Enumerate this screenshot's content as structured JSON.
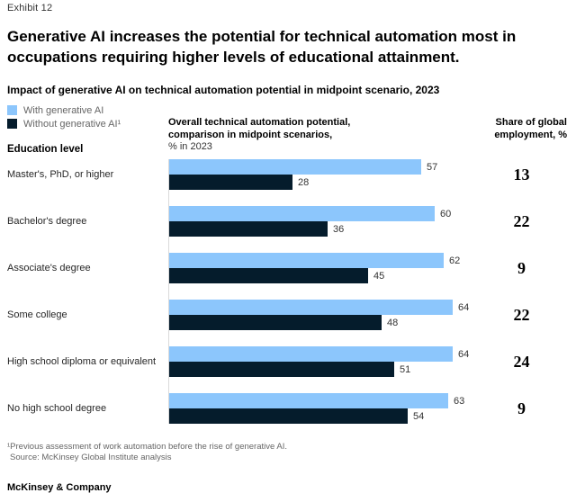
{
  "exhibit_label": "Exhibit 12",
  "title": "Generative AI increases the potential for technical automation most in occupations requiring higher levels of educational attainment.",
  "subtitle": "Impact of generative AI on technical automation potential in midpoint scenario, 2023",
  "legend": [
    {
      "label": "With generative AI",
      "color": "#8CC6FC"
    },
    {
      "label": "Without generative AI¹",
      "color": "#051C2C"
    }
  ],
  "columns": {
    "education_header": "Education level",
    "chart_header_line1": "Overall technical automation potential,",
    "chart_header_line2": "comparison in midpoint scenarios,",
    "chart_header_line3": "% in 2023",
    "share_header_line1": "Share of global",
    "share_header_line2": "employment, %"
  },
  "chart_data": {
    "type": "bar",
    "orientation": "horizontal",
    "title": "Impact of generative AI on technical automation potential in midpoint scenario, 2023",
    "xlabel": "Overall technical automation potential, comparison in midpoint scenarios, % in 2023",
    "ylabel": "Education level",
    "xlim": [
      0,
      64
    ],
    "grid": false,
    "legend_position": "top-left",
    "categories": [
      "Master's, PhD, or higher",
      "Bachelor's degree",
      "Associate's degree",
      "Some college",
      "High school diploma or equivalent",
      "No high school degree"
    ],
    "series": [
      {
        "name": "With generative AI",
        "color": "#8CC6FC",
        "values": [
          57,
          60,
          62,
          64,
          64,
          63
        ]
      },
      {
        "name": "Without generative AI¹",
        "color": "#051C2C",
        "values": [
          28,
          36,
          45,
          48,
          51,
          54
        ]
      }
    ],
    "share_of_global_employment": {
      "label": "Share of global employment, %",
      "values": [
        13,
        22,
        9,
        22,
        24,
        9
      ]
    }
  },
  "footnotes": {
    "note1": "¹Previous assessment of work automation before the rise of generative AI.",
    "source": "Source: McKinsey Global Institute analysis"
  },
  "brand": "McKinsey & Company"
}
